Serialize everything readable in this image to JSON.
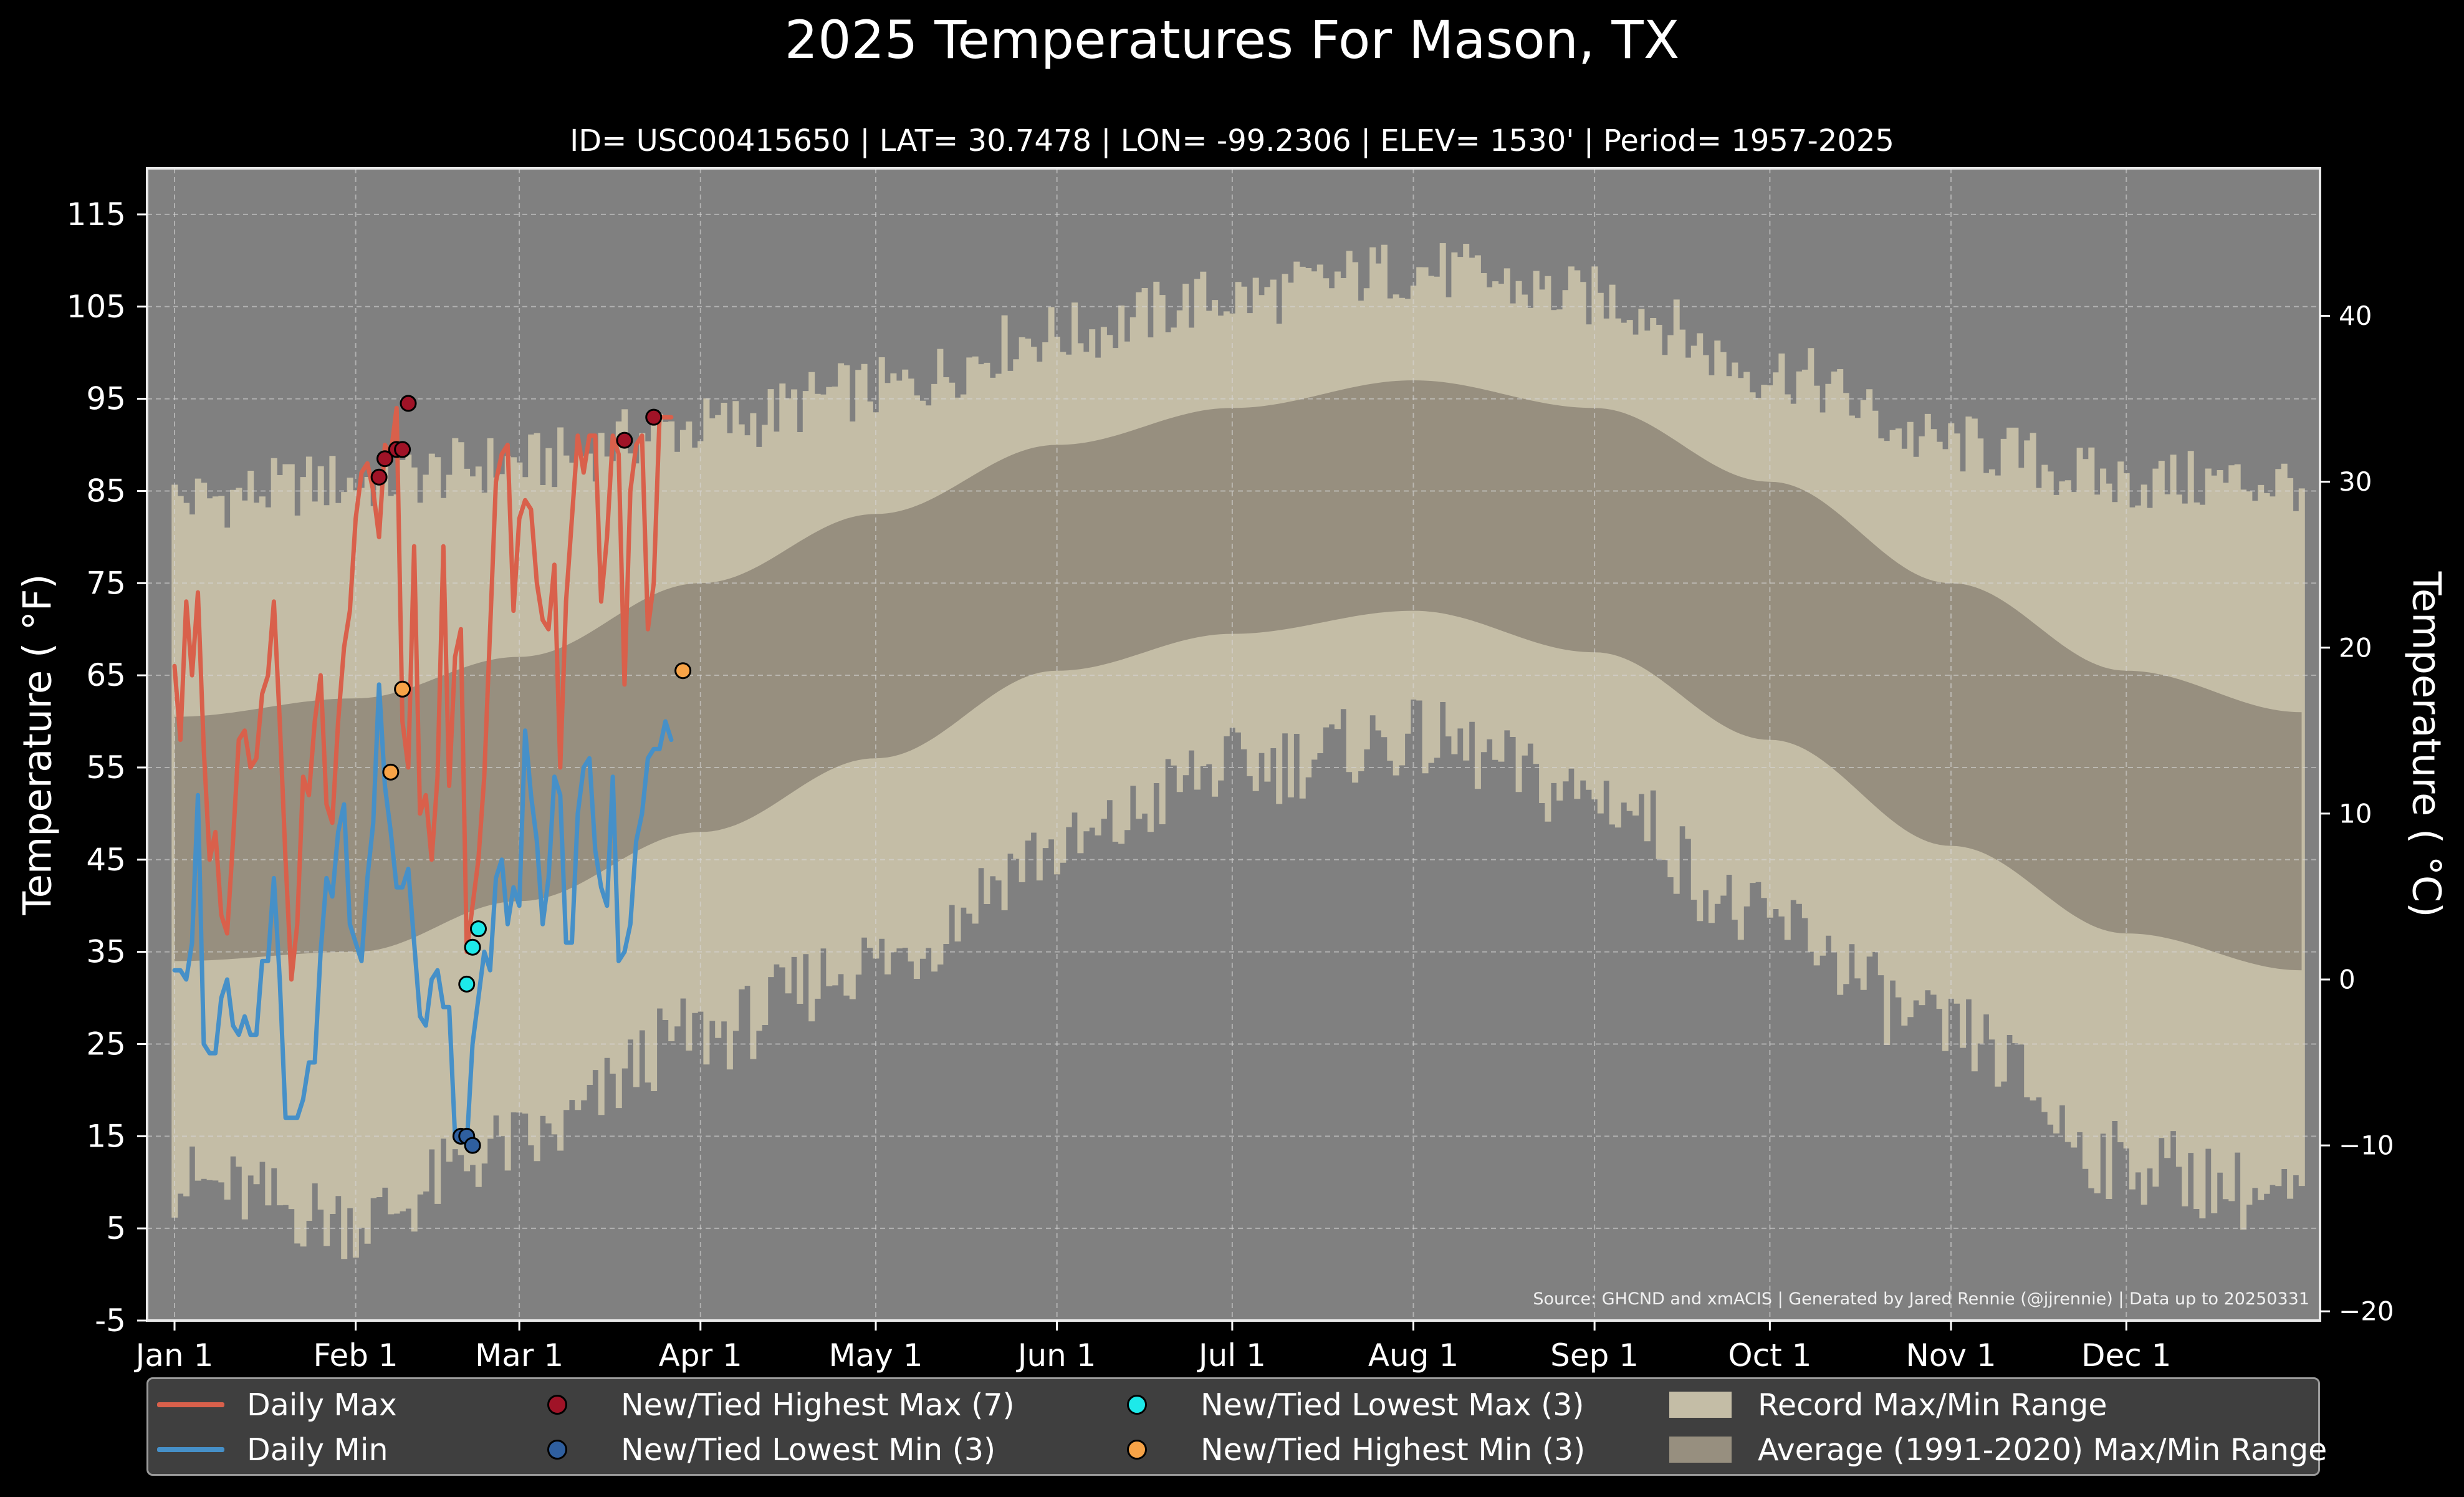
{
  "chart_data": {
    "type": "area",
    "title": "2025 Temperatures For Mason, TX",
    "subtitle": "ID= USC00415650 | LAT= 30.7478 | LON= -99.2306 | ELEV= 1530' | Period= 1957-2025",
    "ylabel": "Temperature ( $^\\circ$F)",
    "ylabel_display": "Temperature ( °F)",
    "y2label_display": "Temperature ( °C)",
    "ylim": [
      -5,
      120
    ],
    "y_ticks": [
      "-5",
      "5",
      "15",
      "25",
      "35",
      "45",
      "55",
      "65",
      "75",
      "85",
      "95",
      "105",
      "115"
    ],
    "y2_ticks": [
      "−20",
      "−10",
      "0",
      "10",
      "20",
      "30",
      "40"
    ],
    "x_ticks": [
      "Jan 1",
      "Feb 1",
      "Mar 1",
      "Apr 1",
      "May 1",
      "Jun 1",
      "Jul 1",
      "Aug 1",
      "Sep 1",
      "Oct 1",
      "Nov 1",
      "Dec 1"
    ],
    "x_tick_days": [
      1,
      32,
      60,
      91,
      121,
      152,
      182,
      213,
      244,
      274,
      305,
      335
    ],
    "grid": true,
    "legend_position": "bottom",
    "source_note": "Source: GHCND and xmACIS | Generated by Jared Rennie (@jjrennie) | Data up to 20250331",
    "colors": {
      "background": "#808080",
      "record_range": "#c4bda6",
      "normal_range": "#978f7f",
      "daily_max": "#d9604b",
      "daily_min": "#4690c8",
      "highest_max": "#a01327",
      "lowest_min": "#2f5f9f",
      "lowest_max": "#1de9e9",
      "highest_min": "#f7a347"
    },
    "record_high_anchors": [
      [
        1,
        84
      ],
      [
        32,
        86
      ],
      [
        60,
        88
      ],
      [
        91,
        92
      ],
      [
        121,
        96
      ],
      [
        152,
        102
      ],
      [
        182,
        106
      ],
      [
        213,
        109
      ],
      [
        244,
        106
      ],
      [
        274,
        98
      ],
      [
        305,
        90
      ],
      [
        335,
        86
      ],
      [
        365,
        86
      ]
    ],
    "record_low_anchors": [
      [
        1,
        10
      ],
      [
        32,
        6
      ],
      [
        60,
        14
      ],
      [
        91,
        26
      ],
      [
        121,
        34
      ],
      [
        152,
        46
      ],
      [
        182,
        55
      ],
      [
        213,
        58
      ],
      [
        244,
        52
      ],
      [
        274,
        38
      ],
      [
        305,
        26
      ],
      [
        335,
        12
      ],
      [
        365,
        8
      ]
    ],
    "normal_high_anchors": [
      [
        1,
        60.5
      ],
      [
        32,
        62.5
      ],
      [
        60,
        67
      ],
      [
        91,
        75
      ],
      [
        121,
        82.5
      ],
      [
        152,
        90
      ],
      [
        182,
        94
      ],
      [
        213,
        97
      ],
      [
        244,
        94
      ],
      [
        274,
        86
      ],
      [
        305,
        75
      ],
      [
        335,
        65.5
      ],
      [
        365,
        61
      ]
    ],
    "normal_low_anchors": [
      [
        1,
        34
      ],
      [
        32,
        35
      ],
      [
        60,
        40.5
      ],
      [
        91,
        48
      ],
      [
        121,
        56
      ],
      [
        152,
        65.5
      ],
      [
        182,
        69.5
      ],
      [
        213,
        72
      ],
      [
        244,
        67.5
      ],
      [
        274,
        58
      ],
      [
        305,
        46.5
      ],
      [
        335,
        37
      ],
      [
        365,
        33
      ]
    ],
    "series": [
      {
        "name": "Daily Max",
        "values": [
          66,
          58,
          73,
          65,
          74,
          57,
          45,
          48,
          39,
          37,
          47,
          58,
          59,
          55,
          56,
          63,
          65,
          73,
          60,
          45,
          32,
          38,
          54,
          52,
          60,
          65,
          51,
          49,
          60,
          68,
          72,
          82,
          87,
          88,
          85,
          80,
          90,
          89,
          94,
          60,
          55,
          79,
          50,
          52,
          45,
          54,
          79,
          53,
          67,
          70,
          35,
          40,
          45,
          54,
          70,
          86,
          89,
          90,
          72,
          82,
          84,
          83,
          75,
          71,
          70,
          77,
          55,
          73,
          82,
          91,
          87,
          91,
          91,
          73,
          80,
          91,
          89,
          64,
          85,
          90,
          91,
          70,
          75,
          93,
          93,
          93
        ],
        "color": "#d9604b"
      },
      {
        "name": "Daily Min",
        "values": [
          33,
          33,
          32,
          36,
          52,
          25,
          24,
          24,
          30,
          32,
          27,
          26,
          28,
          26,
          26,
          34,
          34,
          43,
          32,
          17,
          17,
          17,
          19,
          23,
          23,
          35,
          43,
          41,
          48,
          51,
          38,
          36,
          34,
          43,
          49,
          64,
          53,
          48,
          42,
          42,
          44,
          36,
          28,
          27,
          32,
          33,
          29,
          29,
          15,
          15,
          14,
          25,
          30,
          35,
          33,
          43,
          45,
          38,
          42,
          40,
          59,
          52,
          47,
          38,
          43,
          54,
          52,
          36,
          36,
          50,
          55,
          56,
          46,
          42,
          40,
          54,
          34,
          35,
          38,
          47,
          50,
          56,
          57,
          57,
          60,
          58
        ],
        "color": "#4690c8"
      },
      {
        "name": "New/Tied Highest Max (7)",
        "points": [
          [
            36,
            86.5
          ],
          [
            37,
            88.5
          ],
          [
            39,
            89.5
          ],
          [
            40,
            89.5
          ],
          [
            41,
            94.5
          ],
          [
            78,
            90.5
          ],
          [
            83,
            93
          ]
        ],
        "color": "#a01327"
      },
      {
        "name": "New/Tied Lowest Min (3)",
        "points": [
          [
            50,
            15
          ],
          [
            51,
            15
          ],
          [
            52,
            14
          ]
        ],
        "color": "#2f5f9f"
      },
      {
        "name": "New/Tied Lowest Max (3)",
        "points": [
          [
            51,
            31.5
          ],
          [
            52,
            35.5
          ],
          [
            53,
            37.5
          ]
        ],
        "color": "#1de9e9"
      },
      {
        "name": "New/Tied Highest Min (3)",
        "points": [
          [
            38,
            54.5
          ],
          [
            40,
            63.5
          ],
          [
            88,
            65.5
          ]
        ],
        "color": "#f7a347"
      }
    ],
    "legend": [
      {
        "label": "Daily Max",
        "kind": "line",
        "color": "#d9604b"
      },
      {
        "label": "Daily Min",
        "kind": "line",
        "color": "#4690c8"
      },
      {
        "label": "New/Tied Highest Max (7)",
        "kind": "dot",
        "color": "#a01327"
      },
      {
        "label": "New/Tied Lowest Min (3)",
        "kind": "dot",
        "color": "#2f5f9f"
      },
      {
        "label": "New/Tied Lowest Max (3)",
        "kind": "dot",
        "color": "#1de9e9"
      },
      {
        "label": "New/Tied Highest Min (3)",
        "kind": "dot",
        "color": "#f7a347"
      },
      {
        "label": "Record Max/Min Range",
        "kind": "box",
        "color": "#c4bda6"
      },
      {
        "label": "Average (1991-2020) Max/Min Range",
        "kind": "box",
        "color": "#978f7f"
      }
    ]
  }
}
